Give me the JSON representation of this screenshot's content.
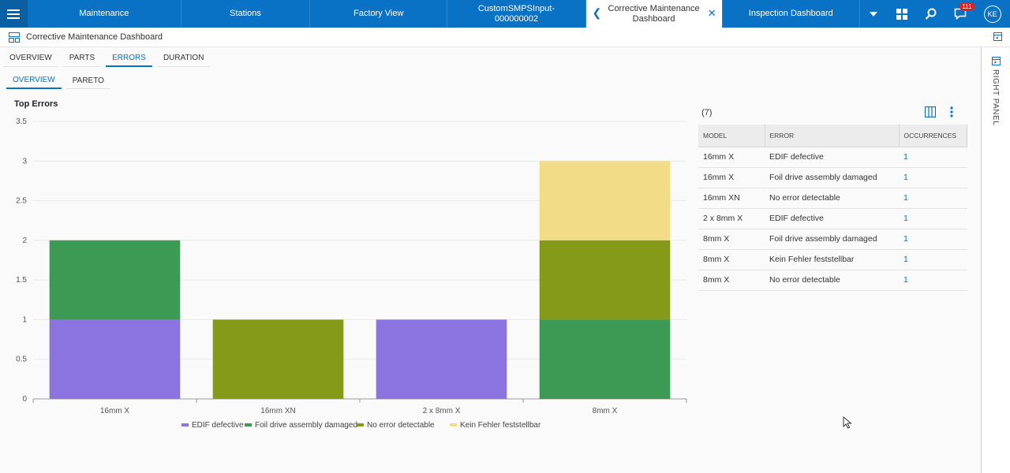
{
  "topbar": {
    "tabs": [
      {
        "label": "Maintenance"
      },
      {
        "label": "Stations"
      },
      {
        "label": "Factory View"
      },
      {
        "label": "CustomSMPSInput-\n000000002"
      },
      {
        "label": "Corrective Maintenance\nDashboard"
      },
      {
        "label": "Inspection Dashboard"
      }
    ],
    "notification_count": "111",
    "user_initials": "KE"
  },
  "header": {
    "title": "Corrective Maintenance Dashboard"
  },
  "tabs_main": [
    {
      "label": "OVERVIEW"
    },
    {
      "label": "PARTS"
    },
    {
      "label": "ERRORS"
    },
    {
      "label": "DURATION"
    }
  ],
  "tabs_sub": [
    {
      "label": "OVERVIEW"
    },
    {
      "label": "PARETO"
    }
  ],
  "chart_data": {
    "type": "bar",
    "stacked": true,
    "title": "Top Errors",
    "categories": [
      "16mm X",
      "16mm XN",
      "2 x 8mm X",
      "8mm X"
    ],
    "series": [
      {
        "name": "EDIF defective",
        "color": "#8b73e0",
        "values": [
          1,
          0,
          1,
          0
        ]
      },
      {
        "name": "Foil drive assembly damaged",
        "color": "#3d9a55",
        "values": [
          1,
          0,
          0,
          1
        ]
      },
      {
        "name": "No error detectable",
        "color": "#869a1a",
        "values": [
          0,
          1,
          0,
          1
        ]
      },
      {
        "name": "Kein Fehler feststellbar",
        "color": "#f3dc88",
        "values": [
          0,
          0,
          0,
          1
        ]
      }
    ],
    "yticks": [
      "0",
      "0.5",
      "1",
      "1.5",
      "2",
      "2.5",
      "3",
      "3.5"
    ],
    "ylim": [
      0,
      3.5
    ],
    "grid": true,
    "legend": "bottom"
  },
  "table": {
    "count": "(7)",
    "headers": [
      "MODEL",
      "ERROR",
      "OCCURRENCES"
    ],
    "rows": [
      [
        "16mm X",
        "EDIF defective",
        "1"
      ],
      [
        "16mm X",
        "Foil drive assembly damaged",
        "1"
      ],
      [
        "16mm XN",
        "No error detectable",
        "1"
      ],
      [
        "2 x 8mm X",
        "EDIF defective",
        "1"
      ],
      [
        "8mm X",
        "Foil drive assembly damaged",
        "1"
      ],
      [
        "8mm X",
        "Kein Fehler feststellbar",
        "1"
      ],
      [
        "8mm X",
        "No error detectable",
        "1"
      ]
    ]
  },
  "right_panel": {
    "label": "RIGHT PANEL"
  }
}
